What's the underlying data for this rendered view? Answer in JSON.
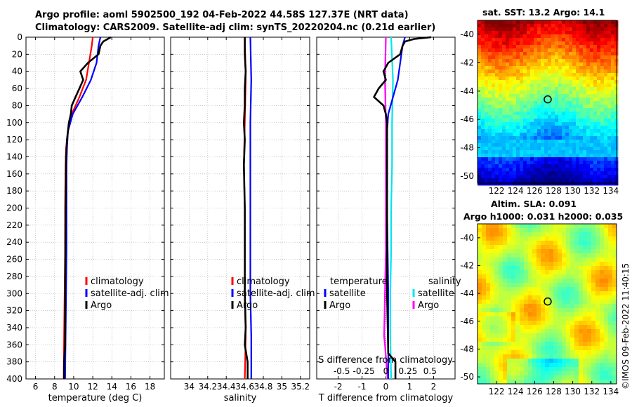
{
  "header": {
    "line1": "Argo profile: aoml 5902500_192 04-Feb-2022 44.58S 127.37E (NRT data)",
    "line2": "Climatology: CARS2009. Satellite-adj clim: synTS_20220204.nc (0.21d earlier)"
  },
  "sst_title": "sat. SST: 13.2 Argo: 14.1",
  "sla_title1": "Altim. SLA: 0.091",
  "sla_title2": "Argo h1000: 0.031 h2000: 0.035",
  "stamp": "©IMOS 09-Feb-2022 11:40:15",
  "colors": {
    "climatology": "#ff0000",
    "satellite": "#0000ff",
    "argo": "#000000",
    "sal_satellite": "#00e5ee",
    "sal_argo": "#ff00ff"
  },
  "chart_data": [
    {
      "type": "line",
      "name": "temperature",
      "xlabel": "temperature (deg C)",
      "ylabel": "",
      "xlim": [
        5,
        19.5
      ],
      "ylim": [
        400,
        0
      ],
      "xticks": [
        6,
        8,
        10,
        12,
        14,
        16,
        18
      ],
      "yticks": [
        0,
        20,
        40,
        60,
        80,
        100,
        120,
        140,
        160,
        180,
        200,
        220,
        240,
        260,
        280,
        300,
        320,
        340,
        360,
        380,
        400
      ],
      "legend": [
        "climatology",
        "satellite-adj. clim",
        "Argo"
      ],
      "series": [
        {
          "name": "climatology",
          "depth": [
            0,
            10,
            30,
            50,
            70,
            90,
            110,
            130,
            150,
            200,
            250,
            300,
            350,
            400
          ],
          "values": [
            12.0,
            11.9,
            11.6,
            11.3,
            10.6,
            9.8,
            9.4,
            9.2,
            9.15,
            9.1,
            9.1,
            9.05,
            9.0,
            8.95
          ]
        },
        {
          "name": "satellite-adj. clim",
          "depth": [
            0,
            10,
            30,
            50,
            70,
            90,
            110,
            130,
            150,
            200,
            250,
            300,
            350,
            400
          ],
          "values": [
            12.8,
            12.6,
            12.4,
            11.8,
            10.9,
            9.9,
            9.4,
            9.3,
            9.25,
            9.25,
            9.25,
            9.2,
            9.15,
            9.1
          ]
        },
        {
          "name": "Argo",
          "depth": [
            0,
            5,
            10,
            20,
            30,
            40,
            50,
            60,
            70,
            80,
            90,
            100,
            120,
            140,
            200,
            300,
            360,
            380,
            400
          ],
          "values": [
            13.9,
            13.1,
            12.8,
            12.6,
            11.5,
            10.7,
            11.0,
            10.6,
            10.2,
            9.8,
            9.7,
            9.5,
            9.3,
            9.2,
            9.15,
            9.1,
            9.1,
            9.0,
            9.0
          ]
        }
      ]
    },
    {
      "type": "line",
      "name": "salinity",
      "xlabel": "salinity",
      "xlim": [
        33.8,
        35.3
      ],
      "ylim": [
        400,
        0
      ],
      "xticks": [
        34,
        34.2,
        34.4,
        34.6,
        34.8,
        35,
        35.2
      ],
      "xticklabels": [
        "34",
        "34.2",
        "34.4",
        "34.6",
        "34.8",
        "35",
        "35.2"
      ],
      "legend": [
        "climatology",
        "satellite-adj. clim",
        "Argo"
      ],
      "series": [
        {
          "name": "climatology",
          "depth": [
            0,
            50,
            100,
            150,
            200,
            250,
            300,
            350,
            400
          ],
          "values": [
            34.6,
            34.61,
            34.6,
            34.59,
            34.6,
            34.6,
            34.6,
            34.61,
            34.6
          ]
        },
        {
          "name": "satellite-adj. clim",
          "depth": [
            0,
            50,
            100,
            150,
            200,
            250,
            300,
            350,
            400
          ],
          "values": [
            34.66,
            34.67,
            34.66,
            34.66,
            34.66,
            34.66,
            34.66,
            34.67,
            34.67
          ]
        },
        {
          "name": "Argo",
          "depth": [
            0,
            20,
            40,
            60,
            80,
            100,
            120,
            150,
            200,
            250,
            300,
            340,
            360,
            380,
            400
          ],
          "values": [
            34.6,
            34.6,
            34.61,
            34.6,
            34.6,
            34.59,
            34.6,
            34.59,
            34.6,
            34.6,
            34.6,
            34.61,
            34.6,
            34.63,
            34.63
          ]
        }
      ]
    },
    {
      "type": "line",
      "name": "difference",
      "xlabel": "T difference from climatology",
      "xlabel_top": "S difference from climatology",
      "xlim": [
        -2.9,
        2.9
      ],
      "ylim": [
        400,
        0
      ],
      "xticks": [
        -2,
        -1,
        0,
        1,
        2
      ],
      "top_ticks": [
        -0.5,
        -0.25,
        0,
        0.25,
        0.5
      ],
      "top_ticklabels": [
        "-0.5",
        "-0.25",
        "0",
        "0.25",
        "0.5"
      ],
      "legend_left_title": "temperature",
      "legend_right_title": "salinity",
      "legend_left": [
        "satellite",
        "Argo"
      ],
      "legend_right": [
        "satellite",
        "Argo"
      ],
      "series": [
        {
          "name": "temperature satellite",
          "depth": [
            0,
            10,
            30,
            50,
            70,
            90,
            110,
            150,
            200,
            300,
            400
          ],
          "values": [
            0.8,
            0.7,
            0.6,
            0.5,
            0.3,
            0.1,
            0.05,
            0.05,
            0.05,
            0.1,
            0.1
          ]
        },
        {
          "name": "temperature Argo",
          "depth": [
            0,
            2,
            5,
            10,
            20,
            30,
            40,
            50,
            60,
            70,
            80,
            90,
            100,
            110,
            150,
            200,
            300,
            370,
            380,
            400
          ],
          "values": [
            1.9,
            1.2,
            0.8,
            0.7,
            0.6,
            0.1,
            -0.1,
            0.0,
            -0.3,
            -0.5,
            -0.1,
            0.0,
            0.05,
            0.05,
            0.05,
            0.05,
            0.05,
            0.1,
            0.4,
            0.4
          ]
        },
        {
          "name": "salinity satellite",
          "depth": [
            0,
            50,
            100,
            150,
            200,
            250,
            300,
            350,
            400
          ],
          "values": [
            0.06,
            0.08,
            0.07,
            0.07,
            0.06,
            0.06,
            0.05,
            0.05,
            0.06
          ]
        },
        {
          "name": "salinity Argo",
          "depth": [
            0,
            50,
            100,
            150,
            200,
            250,
            300,
            350,
            360,
            400
          ],
          "values": [
            0.0,
            -0.01,
            0.0,
            0.0,
            0.0,
            0.0,
            -0.01,
            -0.02,
            -0.01,
            0.02
          ]
        }
      ]
    },
    {
      "type": "heatmap",
      "name": "sat-sst",
      "xlim": [
        120,
        134.6
      ],
      "ylim": [
        -50.5,
        -39
      ],
      "xticks": [
        122,
        124,
        126,
        128,
        130,
        132,
        134
      ],
      "yticks": [
        -40,
        -42,
        -44,
        -46,
        -48,
        -50
      ],
      "marker": {
        "lon": 127.37,
        "lat": -44.58
      }
    },
    {
      "type": "heatmap",
      "name": "altimetry-sla",
      "xlim": [
        120,
        134.6
      ],
      "ylim": [
        -50.5,
        -39
      ],
      "xticks": [
        122,
        124,
        126,
        128,
        130,
        132,
        134
      ],
      "yticks": [
        -40,
        -42,
        -44,
        -46,
        -48,
        -50
      ],
      "marker": {
        "lon": 127.37,
        "lat": -44.58
      }
    }
  ]
}
